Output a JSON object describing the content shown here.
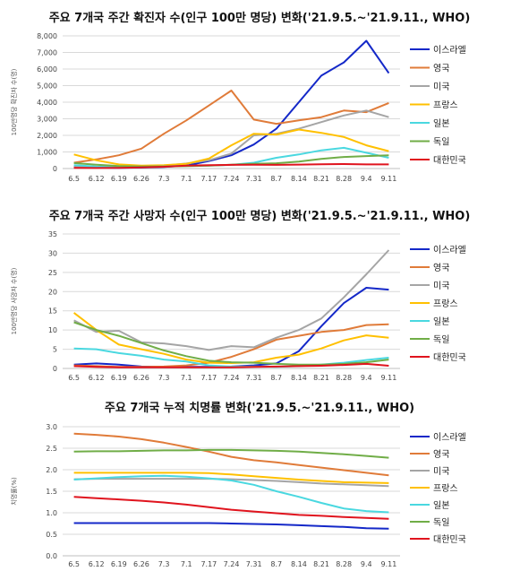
{
  "chart_data": [
    {
      "type": "line",
      "title": "주요 7개국 주간 확진자 수(인구 100만 명당) 변화('21.9.5.~'21.9.11., WHO)",
      "ylabel": "100만명당 확진자 수(명)",
      "ylim": [
        0,
        8000
      ],
      "yticks": [
        "0",
        "1,000",
        "2,000",
        "3,000",
        "4,000",
        "5,000",
        "6,000",
        "7,000",
        "8,000"
      ],
      "grid": true,
      "legend": "right",
      "categories": [
        "6.5",
        "6.12",
        "6.19",
        "6.26",
        "7.3",
        "7.1",
        "7.17",
        "7.24",
        "7.31",
        "8.7",
        "8.14",
        "8.21",
        "8.28",
        "9.4",
        "9.11"
      ],
      "series": [
        {
          "name": "이스라엘",
          "color": "#1428c8",
          "values": [
            80,
            60,
            40,
            60,
            100,
            180,
            450,
            800,
            1450,
            2400,
            4000,
            5600,
            6400,
            7700,
            5750
          ]
        },
        {
          "name": "영국",
          "color": "#e07b39",
          "values": [
            350,
            550,
            800,
            1200,
            2100,
            2900,
            3800,
            4700,
            2950,
            2700,
            2900,
            3100,
            3500,
            3400,
            3950
          ]
        },
        {
          "name": "미국",
          "color": "#a5a5a5",
          "values": [
            120,
            110,
            100,
            110,
            180,
            300,
            500,
            900,
            2000,
            2100,
            2400,
            2800,
            3200,
            3500,
            3100
          ]
        },
        {
          "name": "프랑스",
          "color": "#ffc000",
          "values": [
            850,
            500,
            250,
            180,
            200,
            280,
            600,
            1400,
            2100,
            2050,
            2350,
            2150,
            1900,
            1400,
            1050
          ]
        },
        {
          "name": "일본",
          "color": "#4ad8e0",
          "values": [
            200,
            120,
            100,
            110,
            130,
            170,
            180,
            220,
            350,
            650,
            850,
            1100,
            1250,
            950,
            650
          ]
        },
        {
          "name": "독일",
          "color": "#70ad47",
          "values": [
            330,
            230,
            150,
            120,
            120,
            140,
            180,
            230,
            280,
            320,
            420,
            580,
            700,
            750,
            800
          ]
        },
        {
          "name": "대한민국",
          "color": "#e0141e",
          "values": [
            40,
            35,
            45,
            70,
            110,
            180,
            200,
            220,
            230,
            220,
            240,
            260,
            270,
            250,
            250
          ]
        }
      ]
    },
    {
      "type": "line",
      "title": "주요 7개국 주간 사망자 수(인구 100만 명당) 변화('21.9.5.~'21.9.11., WHO)",
      "ylabel": "100만명당 사망자 수(명)",
      "ylim": [
        0,
        35
      ],
      "yticks": [
        "0",
        "5",
        "10",
        "15",
        "20",
        "25",
        "30",
        "35"
      ],
      "grid": true,
      "legend": "right",
      "categories": [
        "6.5",
        "6.12",
        "6.19",
        "6.26",
        "7.3",
        "7.1",
        "7.17",
        "7.24",
        "7.31",
        "8.7",
        "8.14",
        "8.21",
        "8.28",
        "9.4",
        "9.11"
      ],
      "series": [
        {
          "name": "이스라엘",
          "color": "#1428c8",
          "values": [
            1,
            1.3,
            1,
            0.5,
            0.4,
            0.4,
            0.4,
            0.5,
            0.8,
            1.3,
            4.5,
            11,
            17,
            21,
            20.5
          ]
        },
        {
          "name": "영국",
          "color": "#e07b39",
          "values": [
            0.8,
            0.6,
            0.4,
            0.4,
            0.5,
            0.8,
            1.5,
            3,
            5,
            7.5,
            8.5,
            9.5,
            10,
            11.3,
            11.5
          ]
        },
        {
          "name": "미국",
          "color": "#a5a5a5",
          "values": [
            12.5,
            9.5,
            9.8,
            6.8,
            6.5,
            5.8,
            4.8,
            5.8,
            5.5,
            8,
            10,
            13,
            18.5,
            24.5,
            30.8
          ]
        },
        {
          "name": "프랑스",
          "color": "#ffc000",
          "values": [
            14.5,
            10,
            6.2,
            5,
            3.8,
            2.3,
            1.5,
            1.4,
            1.6,
            2.8,
            3.6,
            5.2,
            7.3,
            8.6,
            8
          ]
        },
        {
          "name": "일본",
          "color": "#4ad8e0",
          "values": [
            5.2,
            5,
            4,
            3.3,
            2.3,
            1.8,
            0.8,
            0.5,
            0.5,
            0.4,
            0.6,
            1,
            1.5,
            2.2,
            2.8
          ]
        },
        {
          "name": "독일",
          "color": "#70ad47",
          "values": [
            12,
            10,
            8.5,
            6.6,
            4.7,
            3.2,
            2,
            1.6,
            1.5,
            1.2,
            1,
            1,
            1.2,
            1.6,
            2.3
          ]
        },
        {
          "name": "대한민국",
          "color": "#e0141e",
          "values": [
            0.6,
            0.4,
            0.3,
            0.3,
            0.3,
            0.3,
            0.3,
            0.3,
            0.4,
            0.5,
            0.6,
            0.7,
            0.9,
            1.2,
            0.7
          ]
        }
      ]
    },
    {
      "type": "line",
      "title": "주요 7개국 누적 치명률 변화('21.9.5.~'21.9.11., WHO)",
      "ylabel": "치명률(%)",
      "ylim": [
        0,
        3.0
      ],
      "yticks": [
        "0.0",
        "0.5",
        "1.0",
        "1.5",
        "2.0",
        "2.5",
        "3.0"
      ],
      "grid": true,
      "legend": "right",
      "categories": [
        "6.5",
        "6.12",
        "6.19",
        "6.26",
        "7.3",
        "7.1",
        "7.17",
        "7.24",
        "7.31",
        "8.7",
        "8.14",
        "8.21",
        "8.28",
        "9.4",
        "9.11"
      ],
      "series": [
        {
          "name": "이스라엘",
          "color": "#1428c8",
          "values": [
            0.76,
            0.76,
            0.76,
            0.76,
            0.76,
            0.76,
            0.76,
            0.75,
            0.74,
            0.73,
            0.71,
            0.69,
            0.67,
            0.64,
            0.63
          ]
        },
        {
          "name": "영국",
          "color": "#e07b39",
          "values": [
            2.84,
            2.81,
            2.77,
            2.71,
            2.63,
            2.53,
            2.42,
            2.3,
            2.22,
            2.17,
            2.11,
            2.05,
            1.99,
            1.93,
            1.87
          ]
        },
        {
          "name": "미국",
          "color": "#a5a5a5",
          "values": [
            1.78,
            1.79,
            1.79,
            1.79,
            1.79,
            1.79,
            1.79,
            1.78,
            1.76,
            1.74,
            1.71,
            1.68,
            1.66,
            1.64,
            1.62
          ]
        },
        {
          "name": "프랑스",
          "color": "#ffc000",
          "values": [
            1.93,
            1.93,
            1.93,
            1.93,
            1.93,
            1.93,
            1.92,
            1.89,
            1.85,
            1.81,
            1.77,
            1.74,
            1.71,
            1.7,
            1.69
          ]
        },
        {
          "name": "일본",
          "color": "#4ad8e0",
          "values": [
            1.77,
            1.8,
            1.83,
            1.85,
            1.86,
            1.84,
            1.8,
            1.75,
            1.65,
            1.5,
            1.37,
            1.23,
            1.1,
            1.04,
            1.01
          ]
        },
        {
          "name": "독일",
          "color": "#70ad47",
          "values": [
            2.42,
            2.43,
            2.43,
            2.44,
            2.45,
            2.45,
            2.46,
            2.46,
            2.45,
            2.44,
            2.42,
            2.39,
            2.36,
            2.32,
            2.28
          ]
        },
        {
          "name": "대한민국",
          "color": "#e0141e",
          "values": [
            1.37,
            1.34,
            1.31,
            1.28,
            1.24,
            1.19,
            1.13,
            1.07,
            1.03,
            0.99,
            0.95,
            0.93,
            0.9,
            0.88,
            0.86
          ]
        }
      ]
    }
  ]
}
